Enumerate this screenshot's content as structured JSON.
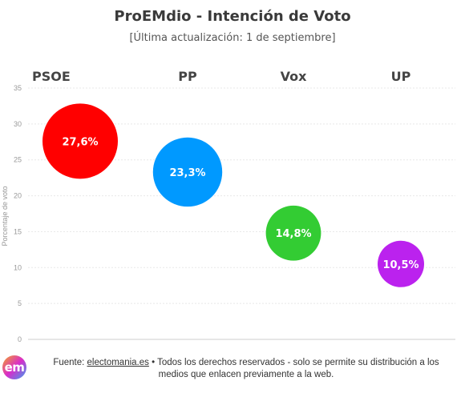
{
  "chart_data": {
    "type": "scatter",
    "title": "ProEMdio - Intención de Voto",
    "subtitle": "[Última actualización: 1 de septiembre]",
    "ylabel": "Porcentaje de voto",
    "ylim": [
      0,
      35
    ],
    "yticks": [
      "0",
      "5",
      "10",
      "15",
      "20",
      "25",
      "30",
      "35"
    ],
    "grid": true,
    "categories": [
      "PSOE",
      "PP",
      "Vox",
      "UP"
    ],
    "values": [
      27.6,
      23.3,
      14.8,
      10.5
    ],
    "labels": [
      "27,6%",
      "23,3%",
      "14,8%",
      "10,5%"
    ],
    "colors": [
      "#ff0000",
      "#0099ff",
      "#33cc33",
      "#bb22ee"
    ]
  },
  "footer": {
    "prefix": "Fuente: ",
    "link": "electomania.es",
    "suffix": " • Todos los derechos reservados - solo se permite su distribución a los medios que enlacen previamente a la web."
  },
  "logo": {
    "text": "em"
  }
}
